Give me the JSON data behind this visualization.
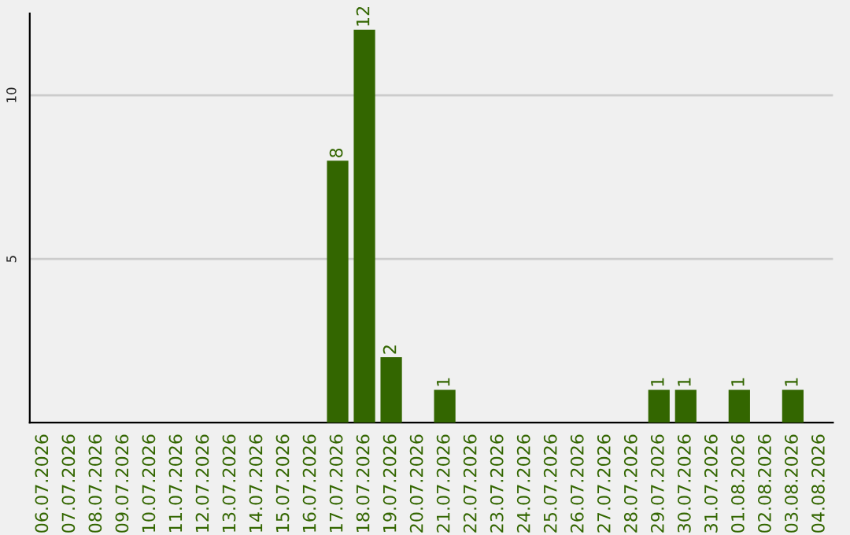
{
  "chart_data": {
    "type": "bar",
    "categories": [
      "06.07.2026",
      "07.07.2026",
      "08.07.2026",
      "09.07.2026",
      "10.07.2026",
      "11.07.2026",
      "12.07.2026",
      "13.07.2026",
      "14.07.2026",
      "15.07.2026",
      "16.07.2026",
      "17.07.2026",
      "18.07.2026",
      "19.07.2026",
      "20.07.2026",
      "21.07.2026",
      "22.07.2026",
      "23.07.2026",
      "24.07.2026",
      "25.07.2026",
      "26.07.2026",
      "27.07.2026",
      "28.07.2026",
      "29.07.2026",
      "30.07.2026",
      "31.07.2026",
      "01.08.2026",
      "02.08.2026",
      "03.08.2026",
      "04.08.2026"
    ],
    "values": [
      0,
      0,
      0,
      0,
      0,
      0,
      0,
      0,
      0,
      0,
      0,
      8,
      12,
      2,
      0,
      1,
      0,
      0,
      0,
      0,
      0,
      0,
      0,
      1,
      1,
      0,
      1,
      0,
      1,
      0
    ],
    "value_labels": [
      null,
      null,
      null,
      null,
      null,
      null,
      null,
      null,
      null,
      null,
      null,
      "8",
      "12",
      "2",
      null,
      "1",
      null,
      null,
      null,
      null,
      null,
      null,
      null,
      "1",
      "1",
      null,
      "1",
      null,
      "1",
      null
    ],
    "color": "#336600",
    "ylim": [
      0,
      12.5
    ],
    "yticks": [
      5,
      10
    ],
    "grid": "y"
  }
}
